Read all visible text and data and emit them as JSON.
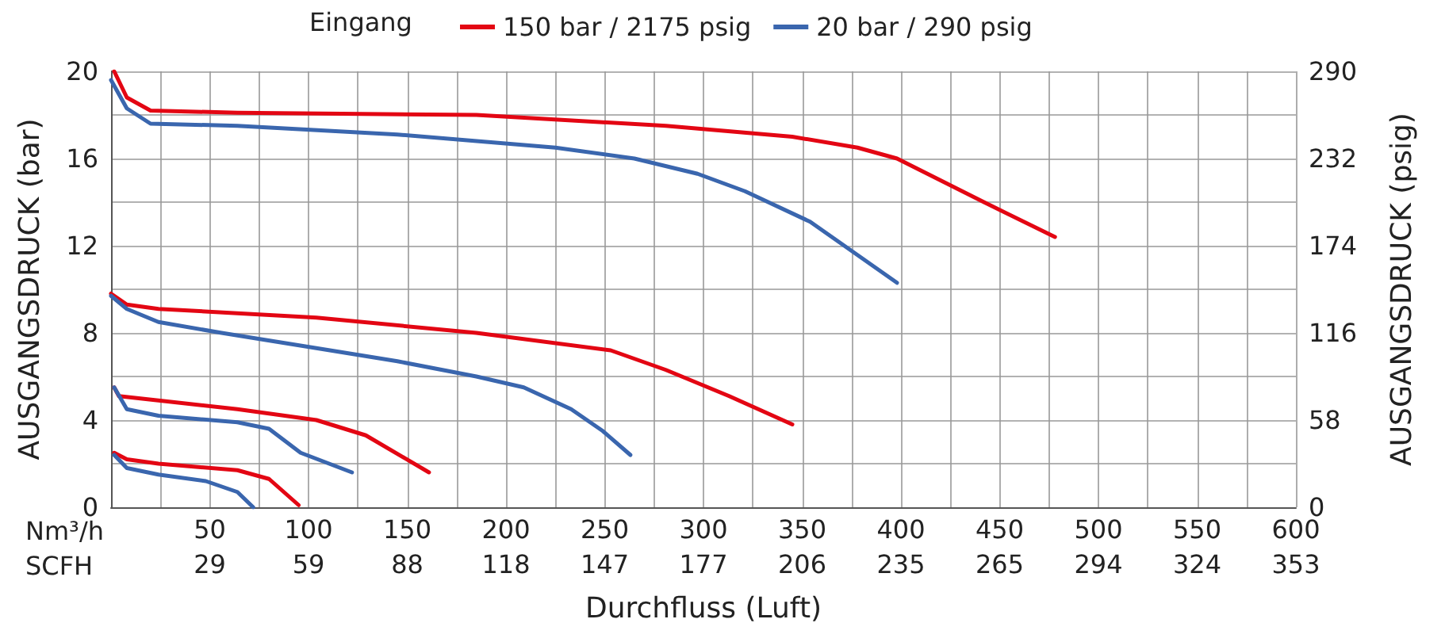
{
  "chart_data": {
    "type": "line",
    "xlabel": "Durchfluss (Luft)",
    "ylabel": "AUSGANGSDRUCK (bar)",
    "y2label": "AUSGANGSDRUCK (psig)",
    "x2label": "SCFH",
    "legend_title": "Eingang",
    "annotations": [
      "Nm³/h"
    ],
    "xlim": [
      0,
      600
    ],
    "xticks": [
      {
        "value": 0,
        "label": null
      },
      {
        "value": 25,
        "label": null
      },
      50,
      {
        "value": 75,
        "label": null
      },
      100,
      {
        "value": 125,
        "label": null
      },
      150,
      {
        "value": 175,
        "label": null
      },
      200,
      {
        "value": 225,
        "label": null
      },
      250,
      {
        "value": 275,
        "label": null
      },
      300,
      {
        "value": 325,
        "label": null
      },
      350,
      {
        "value": 375,
        "label": null
      },
      400,
      {
        "value": 425,
        "label": null
      },
      450,
      {
        "value": 475,
        "label": null
      },
      500,
      {
        "value": 525,
        "label": null
      },
      550,
      {
        "value": 575,
        "label": null
      },
      600
    ],
    "x2lim": [
      0,
      353
    ],
    "x2ticks": [
      {
        "value": 29.42,
        "label": "29"
      },
      {
        "value": 58.83,
        "label": "59"
      },
      {
        "value": 88.25,
        "label": "88"
      },
      {
        "value": 117.67,
        "label": "118"
      },
      {
        "value": 147.08,
        "label": "147"
      },
      {
        "value": 176.5,
        "label": "177"
      },
      {
        "value": 205.92,
        "label": "206"
      },
      {
        "value": 235.33,
        "label": "235"
      },
      {
        "value": 264.75,
        "label": "265"
      },
      {
        "value": 294.17,
        "label": "294"
      },
      {
        "value": 323.58,
        "label": "324"
      },
      353
    ],
    "ylim": [
      0,
      20
    ],
    "yticks": [
      0,
      {
        "value": 2,
        "label": null
      },
      4,
      {
        "value": 6,
        "label": null
      },
      8,
      {
        "value": 10,
        "label": null
      },
      12,
      {
        "value": 14,
        "label": null
      },
      16,
      {
        "value": 18,
        "label": null
      },
      20
    ],
    "y2lim": [
      0,
      290
    ],
    "y2ticks": [
      0,
      58,
      116,
      174,
      232,
      290
    ],
    "grid": true,
    "legend": "top",
    "series": [
      {
        "name": "150 bar / 2175 psig",
        "color": "#e30613",
        "x": [
          1.6,
          8,
          20,
          64,
          185,
          281,
          345,
          378,
          398,
          442,
          478
        ],
        "values": [
          20,
          18.8,
          18.2,
          18.1,
          18.0,
          17.5,
          17.0,
          16.5,
          16.0,
          14.0,
          12.4
        ]
      },
      {
        "name": "20 bar / 290 psig",
        "color": "#3a66ae",
        "x": [
          0,
          8,
          20,
          64,
          145,
          225,
          265,
          297,
          321,
          354,
          398
        ],
        "values": [
          19.6,
          18.3,
          17.6,
          17.5,
          17.1,
          16.5,
          16.0,
          15.3,
          14.5,
          13.1,
          10.3
        ]
      },
      {
        "color": "#e30613",
        "x": [
          0,
          8,
          24,
          104,
          185,
          253,
          281,
          313,
          345
        ],
        "values": [
          9.8,
          9.3,
          9.1,
          8.7,
          8.0,
          7.2,
          6.3,
          5.1,
          3.8
        ]
      },
      {
        "color": "#3a66ae",
        "x": [
          0,
          8,
          24,
          56,
          104,
          145,
          185,
          209,
          233,
          249,
          263
        ],
        "values": [
          9.7,
          9.1,
          8.5,
          8.0,
          7.3,
          6.7,
          6.0,
          5.5,
          4.5,
          3.5,
          2.4
        ]
      },
      {
        "color": "#e30613",
        "x": [
          1.6,
          4,
          24,
          64,
          104,
          129,
          161
        ],
        "values": [
          5.5,
          5.1,
          4.9,
          4.5,
          4.0,
          3.3,
          1.6
        ]
      },
      {
        "color": "#3a66ae",
        "x": [
          1.6,
          8,
          24,
          64,
          80,
          96,
          122
        ],
        "values": [
          5.5,
          4.5,
          4.2,
          3.9,
          3.6,
          2.5,
          1.6
        ]
      },
      {
        "color": "#e30613",
        "x": [
          1.6,
          8,
          24,
          64,
          80,
          95
        ],
        "values": [
          2.5,
          2.2,
          2.0,
          1.7,
          1.3,
          0.1
        ]
      },
      {
        "color": "#3a66ae",
        "x": [
          1.6,
          8,
          24,
          48,
          64,
          72
        ],
        "values": [
          2.4,
          1.8,
          1.5,
          1.2,
          0.7,
          0
        ]
      }
    ]
  }
}
